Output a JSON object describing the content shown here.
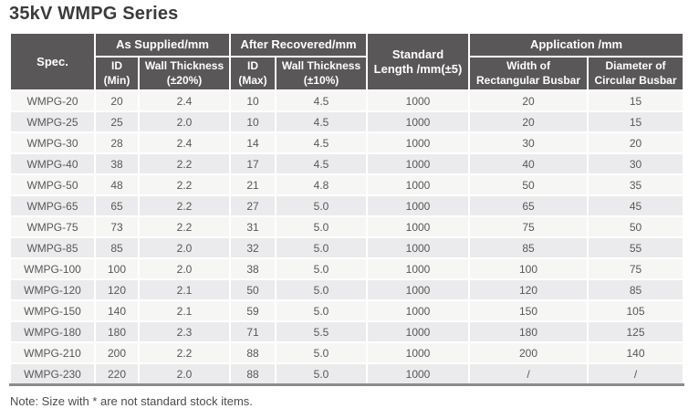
{
  "title": "35kV WMPG Series",
  "note": "Note: Size with * are not standard stock items.",
  "colors": {
    "header_bg": "#595757",
    "header_text": "#ffffff",
    "row_light": "#f6f6f5",
    "row_dark": "#ebebed",
    "table_bottom_border": "#8a8c8f",
    "body_text": "#595757",
    "title_text": "#3b3b3b"
  },
  "table": {
    "groups": {
      "spec": "Spec.",
      "as_supplied": "As Supplied/mm",
      "after_recovered": "After Recovered/mm",
      "standard_length": "Standard\nLength /mm(±5)",
      "application": "Application /mm"
    },
    "subheaders": {
      "id_min": "ID\n(Min)",
      "wall_20": "Wall Thickness\n(±20%)",
      "id_max": "ID\n(Max)",
      "wall_10": "Wall Thickness\n(±10%)",
      "width_rect": "Width of\nRectangular Busbar",
      "dia_circ": "Diameter of\nCircular Busbar"
    },
    "column_keys": [
      "spec",
      "id-min",
      "wall-thickness-20",
      "id-max",
      "wall-thickness-10",
      "standard-length",
      "width-rectangular-busbar",
      "diameter-circular-busbar"
    ],
    "rows": [
      [
        "WMPG-20",
        "20",
        "2.4",
        "10",
        "4.5",
        "1000",
        "20",
        "15"
      ],
      [
        "WMPG-25",
        "25",
        "2.0",
        "10",
        "4.5",
        "1000",
        "20",
        "15"
      ],
      [
        "WMPG-30",
        "28",
        "2.4",
        "14",
        "4.5",
        "1000",
        "30",
        "20"
      ],
      [
        "WMPG-40",
        "38",
        "2.2",
        "17",
        "4.5",
        "1000",
        "40",
        "30"
      ],
      [
        "WMPG-50",
        "48",
        "2.2",
        "21",
        "4.8",
        "1000",
        "50",
        "35"
      ],
      [
        "WMPG-65",
        "65",
        "2.2",
        "27",
        "5.0",
        "1000",
        "65",
        "45"
      ],
      [
        "WMPG-75",
        "73",
        "2.2",
        "31",
        "5.0",
        "1000",
        "75",
        "50"
      ],
      [
        "WMPG-85",
        "85",
        "2.0",
        "32",
        "5.0",
        "1000",
        "85",
        "55"
      ],
      [
        "WMPG-100",
        "100",
        "2.0",
        "38",
        "5.0",
        "1000",
        "100",
        "75"
      ],
      [
        "WMPG-120",
        "120",
        "2.1",
        "50",
        "5.0",
        "1000",
        "120",
        "85"
      ],
      [
        "WMPG-150",
        "140",
        "2.1",
        "59",
        "5.0",
        "1000",
        "150",
        "105"
      ],
      [
        "WMPG-180",
        "180",
        "2.3",
        "71",
        "5.5",
        "1000",
        "180",
        "125"
      ],
      [
        "WMPG-210",
        "200",
        "2.2",
        "88",
        "5.0",
        "1000",
        "200",
        "140"
      ],
      [
        "WMPG-230",
        "220",
        "2.0",
        "88",
        "5.0",
        "1000",
        "/",
        "/"
      ]
    ]
  }
}
